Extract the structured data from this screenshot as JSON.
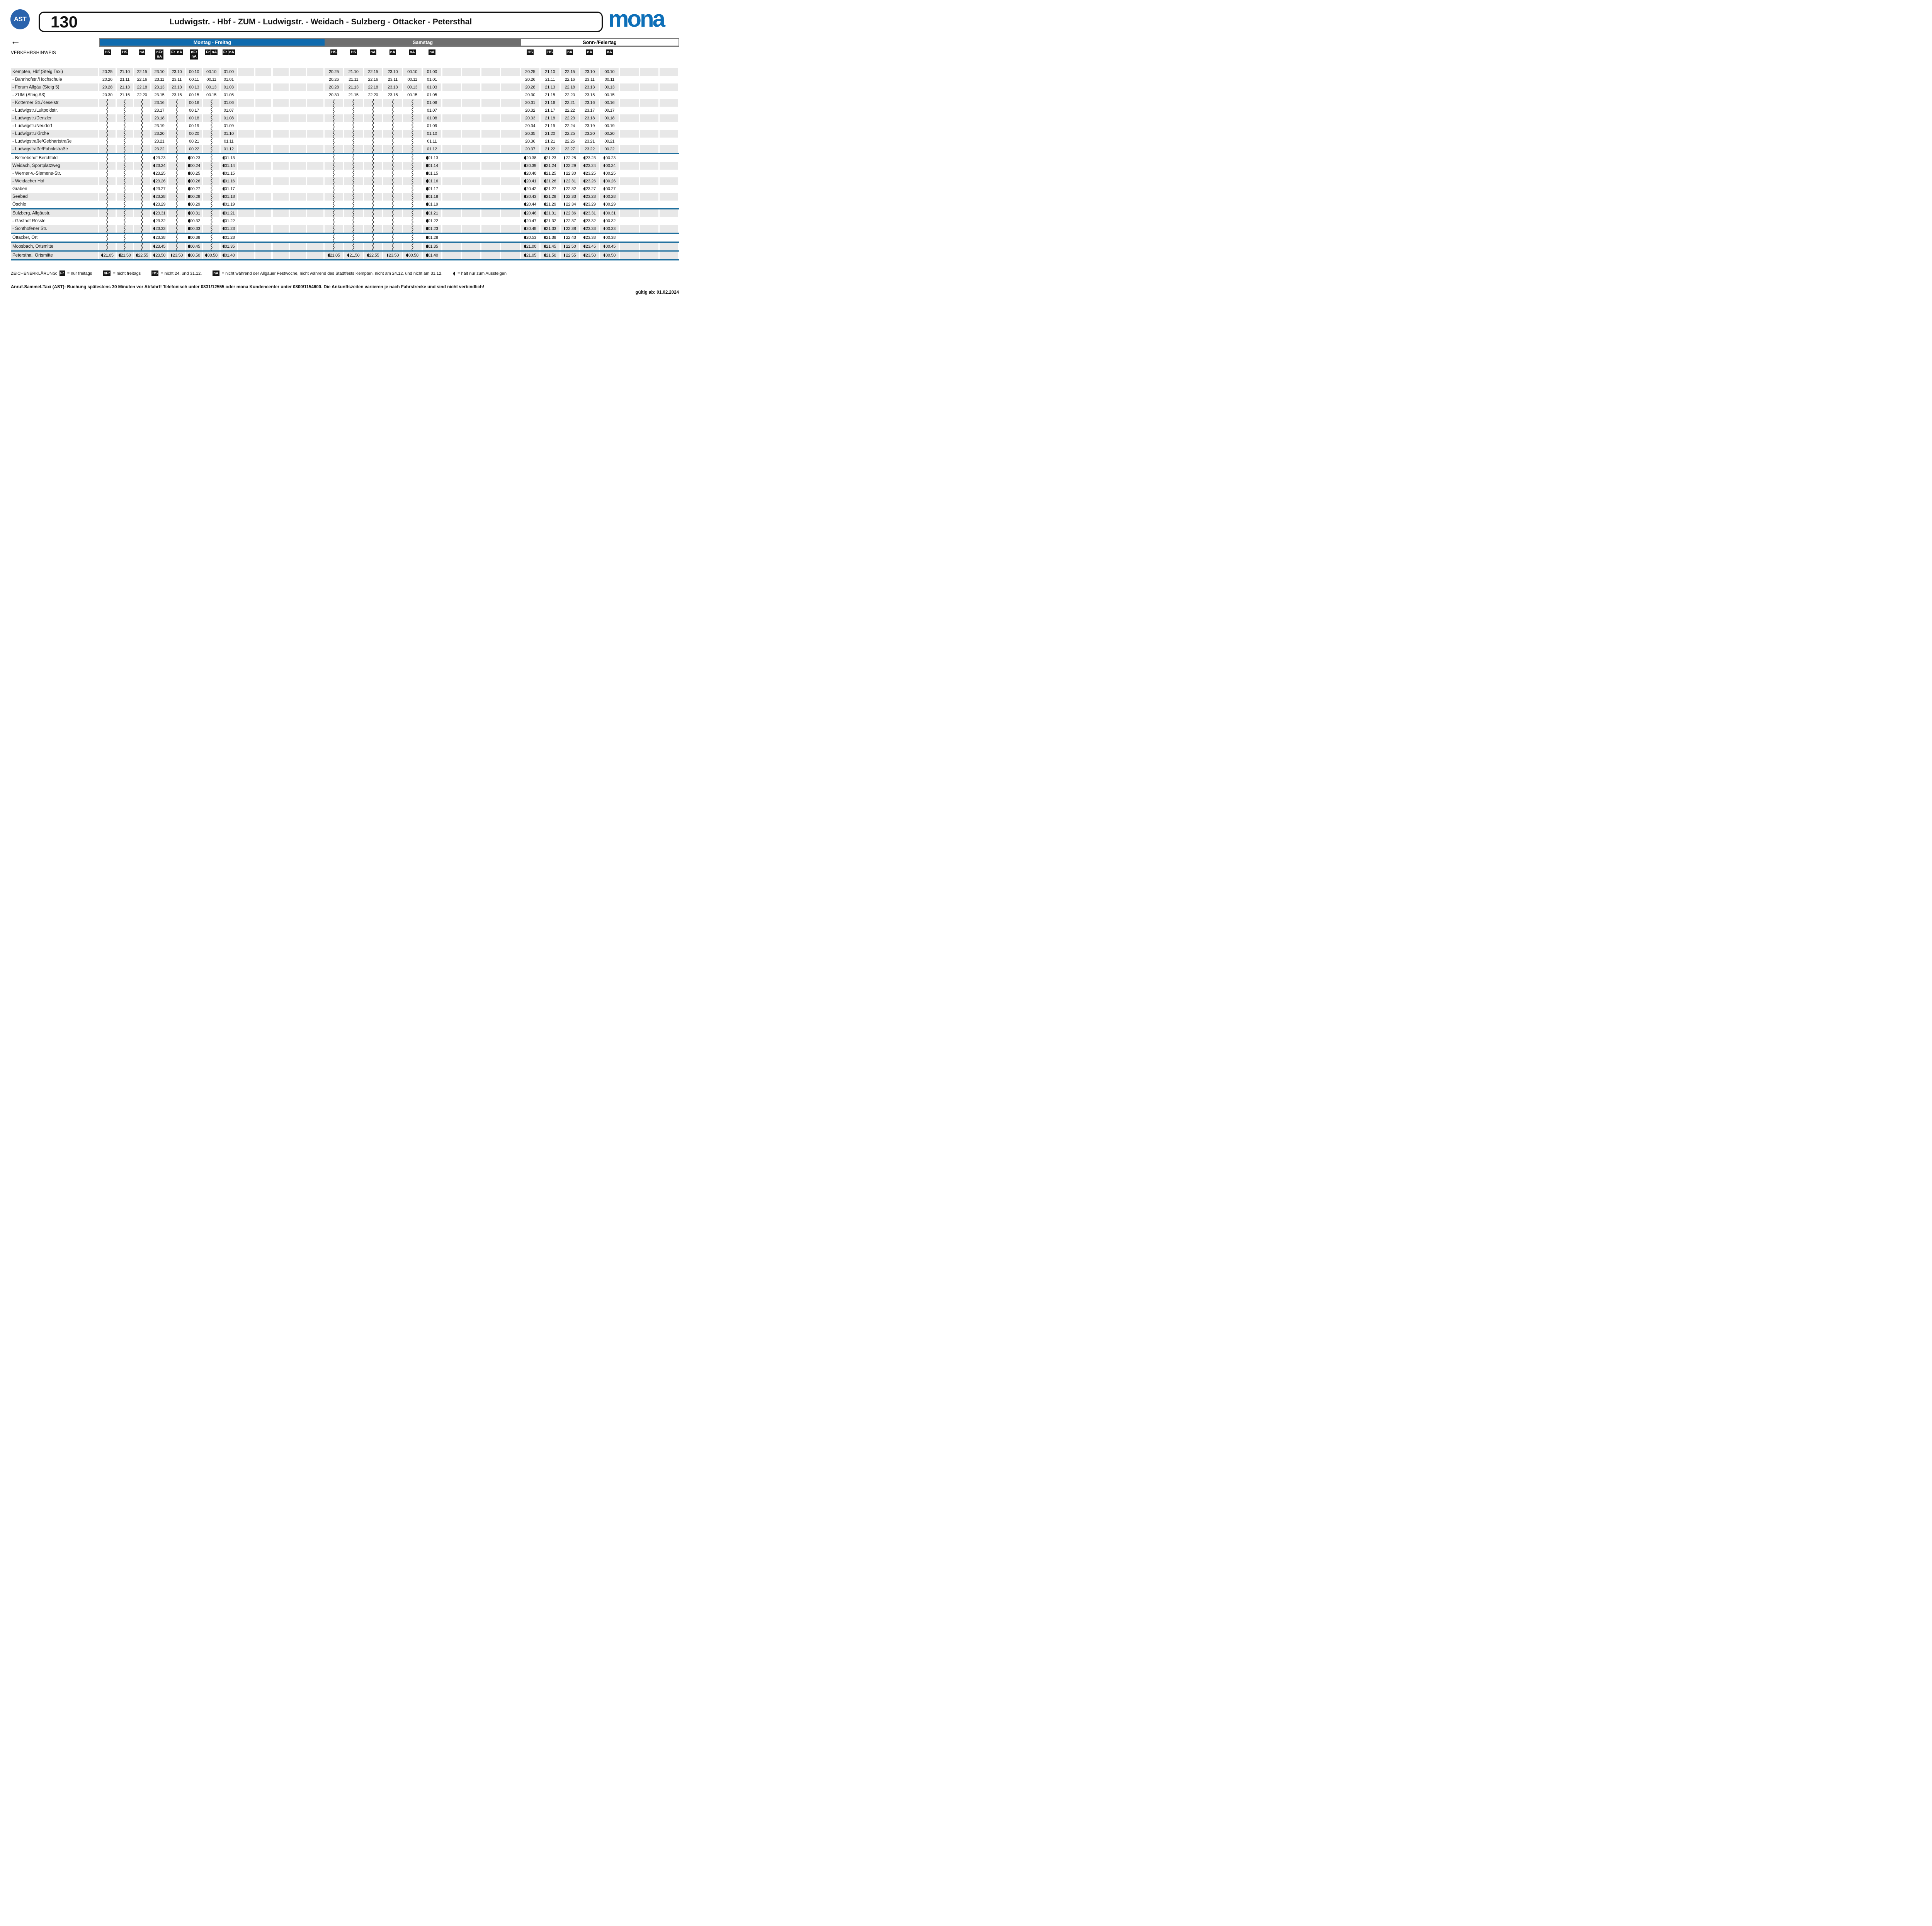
{
  "header": {
    "ast_badge": "AST",
    "route_number": "130",
    "route_title": "Ludwigstr. - Hbf - ZUM - Ludwigstr. - Weidach - Sulzberg - Ottacker - Petersthal",
    "brand": "mona",
    "back_arrow": "←",
    "hint_label": "VERKEHRSHINWEIS"
  },
  "colors": {
    "weekday_band": "#0f6bae",
    "saturday_band": "#6f6f6f",
    "sunday_band": "#ffffff",
    "row_shade": "#e8e8e8",
    "separator_blue": "#1e6f9e",
    "brand_blue": "#0d6fb8",
    "ast_blue": "#2a63ad"
  },
  "day_blocks": [
    {
      "id": "mf",
      "label": "Montag - Freitag",
      "cols": 13,
      "tags": [
        "HS",
        "HS",
        "nA",
        "nFr+nA",
        "Fr nA",
        "nFr+nA",
        "Fr nA",
        "Fr nA"
      ]
    },
    {
      "id": "sa",
      "label": "Samstag",
      "cols": 10,
      "tags": [
        "HS",
        "HS",
        "nA",
        "nA",
        "nA",
        "nA"
      ]
    },
    {
      "id": "so",
      "label": "Sonn-/Feiertag",
      "cols": 8,
      "tags": [
        "HS",
        "HS",
        "nA",
        "nA",
        "nA"
      ]
    }
  ],
  "timetable": {
    "separators_after": [
      10,
      17,
      20,
      21,
      22,
      23
    ],
    "stops": [
      {
        "name": "Kempten, Hbf (Steig Taxi)",
        "mf": [
          "20.25",
          "21.10",
          "22.15",
          "23.10",
          "23.10",
          "00.10",
          "00.10",
          "01.00"
        ],
        "sa": [
          "20.25",
          "21.10",
          "22.15",
          "23.10",
          "00.10",
          "01.00"
        ],
        "so": [
          "20.25",
          "21.10",
          "22.15",
          "23.10",
          "00.10"
        ]
      },
      {
        "name": "- Bahnhofstr./Hochschule",
        "mf": [
          "20.26",
          "21.11",
          "22.16",
          "23.11",
          "23.11",
          "00.11",
          "00.11",
          "01.01"
        ],
        "sa": [
          "20.26",
          "21.11",
          "22.16",
          "23.11",
          "00.11",
          "01.01"
        ],
        "so": [
          "20.26",
          "21.11",
          "22.16",
          "23.11",
          "00.11"
        ]
      },
      {
        "name": "- Forum Allgäu (Steig 5)",
        "mf": [
          "20.28",
          "21.13",
          "22.18",
          "23.13",
          "23.13",
          "00.13",
          "00.13",
          "01.03"
        ],
        "sa": [
          "20.28",
          "21.13",
          "22.18",
          "23.13",
          "00.13",
          "01.03"
        ],
        "so": [
          "20.28",
          "21.13",
          "22.18",
          "23.13",
          "00.13"
        ]
      },
      {
        "name": "- ZUM (Steig A3)",
        "mf": [
          "20.30",
          "21.15",
          "22.20",
          "23.15",
          "23.15",
          "00.15",
          "00.15",
          "01.05"
        ],
        "sa": [
          "20.30",
          "21.15",
          "22.20",
          "23.15",
          "00.15",
          "01.05"
        ],
        "so": [
          "20.30",
          "21.15",
          "22.20",
          "23.15",
          "00.15"
        ]
      },
      {
        "name": "- Kotterner Str./Keselstr.",
        "mf": [
          "~",
          "~",
          "~",
          "23.16",
          "~",
          "00.16",
          "~",
          "01.06"
        ],
        "sa": [
          "~",
          "~",
          "~",
          "~",
          "~",
          "01.06"
        ],
        "so": [
          "20.31",
          "21.16",
          "22.21",
          "23.16",
          "00.16"
        ]
      },
      {
        "name": "- Ludwigstr./Luitpoldstr.",
        "mf": [
          "~",
          "~",
          "~",
          "23.17",
          "~",
          "00.17",
          "~",
          "01.07"
        ],
        "sa": [
          "~",
          "~",
          "~",
          "~",
          "~",
          "01.07"
        ],
        "so": [
          "20.32",
          "21.17",
          "22.22",
          "23.17",
          "00.17"
        ]
      },
      {
        "name": "- Ludwigstr./Denzler",
        "mf": [
          "~",
          "~",
          "~",
          "23.18",
          "~",
          "00.18",
          "~",
          "01.08"
        ],
        "sa": [
          "~",
          "~",
          "~",
          "~",
          "~",
          "01.08"
        ],
        "so": [
          "20.33",
          "21.18",
          "22.23",
          "23.18",
          "00.18"
        ]
      },
      {
        "name": "- Ludwigstr./Neudorf",
        "mf": [
          "~",
          "~",
          "~",
          "23.19",
          "~",
          "00.19",
          "~",
          "01.09"
        ],
        "sa": [
          "~",
          "~",
          "~",
          "~",
          "~",
          "01.09"
        ],
        "so": [
          "20.34",
          "21.19",
          "22.24",
          "23.19",
          "00.19"
        ]
      },
      {
        "name": "- Ludwigstr./Kirche",
        "mf": [
          "~",
          "~",
          "~",
          "23.20",
          "~",
          "00.20",
          "~",
          "01.10"
        ],
        "sa": [
          "~",
          "~",
          "~",
          "~",
          "~",
          "01.10"
        ],
        "so": [
          "20.35",
          "21.20",
          "22.25",
          "23.20",
          "00.20"
        ]
      },
      {
        "name": "- Ludwigstraße/Gebhartstraße",
        "mf": [
          "~",
          "~",
          "~",
          "23.21",
          "~",
          "00.21",
          "~",
          "01.11"
        ],
        "sa": [
          "~",
          "~",
          "~",
          "~",
          "~",
          "01.11"
        ],
        "so": [
          "20.36",
          "21.21",
          "22.26",
          "23.21",
          "00.21"
        ]
      },
      {
        "name": "- Ludwigstraße/Fabrikstraße",
        "mf": [
          "~",
          "~",
          "~",
          "23.22",
          "~",
          "00.22",
          "~",
          "01.12"
        ],
        "sa": [
          "~",
          "~",
          "~",
          "~",
          "~",
          "01.12"
        ],
        "so": [
          "20.37",
          "21.22",
          "22.27",
          "23.22",
          "00.22"
        ]
      },
      {
        "name": "- Betriebshof Berchtold",
        "mf": [
          "~",
          "~",
          "~",
          "*23.23",
          "~",
          "*00.23",
          "~",
          "*01.13"
        ],
        "sa": [
          "~",
          "~",
          "~",
          "~",
          "~",
          "*01.13"
        ],
        "so": [
          "*20.38",
          "*21.23",
          "*22.28",
          "*23.23",
          "*00.23"
        ]
      },
      {
        "name": "Weidach, Sportplatzweg",
        "mf": [
          "~",
          "~",
          "~",
          "*23.24",
          "~",
          "*00.24",
          "~",
          "*01.14"
        ],
        "sa": [
          "~",
          "~",
          "~",
          "~",
          "~",
          "*01.14"
        ],
        "so": [
          "*20.39",
          "*21.24",
          "*22.29",
          "*23.24",
          "*00.24"
        ]
      },
      {
        "name": "- Werner-v.-Siemens-Str.",
        "mf": [
          "~",
          "~",
          "~",
          "*23.25",
          "~",
          "*00.25",
          "~",
          "*01.15"
        ],
        "sa": [
          "~",
          "~",
          "~",
          "~",
          "~",
          "*01.15"
        ],
        "so": [
          "*20.40",
          "*21.25",
          "*22.30",
          "*23.25",
          "*00.25"
        ]
      },
      {
        "name": "- Weidacher Hof",
        "mf": [
          "~",
          "~",
          "~",
          "*23.26",
          "~",
          "*00.26",
          "~",
          "*01.16"
        ],
        "sa": [
          "~",
          "~",
          "~",
          "~",
          "~",
          "*01.16"
        ],
        "so": [
          "*20.41",
          "*21.26",
          "*22.31",
          "*23.26",
          "*00.26"
        ]
      },
      {
        "name": "Graben",
        "mf": [
          "~",
          "~",
          "~",
          "*23.27",
          "~",
          "*00.27",
          "~",
          "*01.17"
        ],
        "sa": [
          "~",
          "~",
          "~",
          "~",
          "~",
          "*01.17"
        ],
        "so": [
          "*20.42",
          "*21.27",
          "*22.32",
          "*23.27",
          "*00.27"
        ]
      },
      {
        "name": "Seebad",
        "mf": [
          "~",
          "~",
          "~",
          "*23.28",
          "~",
          "*00.28",
          "~",
          "*01.18"
        ],
        "sa": [
          "~",
          "~",
          "~",
          "~",
          "~",
          "*01.18"
        ],
        "so": [
          "*20.43",
          "*21.28",
          "*22.33",
          "*23.28",
          "*00.28"
        ]
      },
      {
        "name": "Öschle",
        "mf": [
          "~",
          "~",
          "~",
          "*23.29",
          "~",
          "*00.29",
          "~",
          "*01.19"
        ],
        "sa": [
          "~",
          "~",
          "~",
          "~",
          "~",
          "*01.19"
        ],
        "so": [
          "*20.44",
          "*21.29",
          "*22.34",
          "*23.29",
          "*00.29"
        ]
      },
      {
        "name": "Sulzberg, Allgäustr.",
        "mf": [
          "~",
          "~",
          "~",
          "*23.31",
          "~",
          "*00.31",
          "~",
          "*01.21"
        ],
        "sa": [
          "~",
          "~",
          "~",
          "~",
          "~",
          "*01.21"
        ],
        "so": [
          "*20.46",
          "*21.31",
          "*22.36",
          "*23.31",
          "*00.31"
        ]
      },
      {
        "name": "- Gasthof Rössle",
        "mf": [
          "~",
          "~",
          "~",
          "*23.32",
          "~",
          "*00.32",
          "~",
          "*01.22"
        ],
        "sa": [
          "~",
          "~",
          "~",
          "~",
          "~",
          "*01.22"
        ],
        "so": [
          "*20.47",
          "*21.32",
          "*22.37",
          "*23.32",
          "*00.32"
        ]
      },
      {
        "name": "- Sonthofener Str.",
        "mf": [
          "~",
          "~",
          "~",
          "*23.33",
          "~",
          "*00.33",
          "~",
          "*01.23"
        ],
        "sa": [
          "~",
          "~",
          "~",
          "~",
          "~",
          "*01.23"
        ],
        "so": [
          "*20.48",
          "*21.33",
          "*22.38",
          "*23.33",
          "*00.33"
        ]
      },
      {
        "name": "Ottacker, Ort",
        "mf": [
          "~",
          "~",
          "~",
          "*23.38",
          "~",
          "*00.38",
          "~",
          "*01.28"
        ],
        "sa": [
          "~",
          "~",
          "~",
          "~",
          "~",
          "*01.28"
        ],
        "so": [
          "*20.53",
          "*21.38",
          "*22.43",
          "*23.38",
          "*00.38"
        ]
      },
      {
        "name": "Moosbach, Ortsmitte",
        "mf": [
          "~",
          "~",
          "~",
          "*23.45",
          "~",
          "*00.45",
          "~",
          "*01.35"
        ],
        "sa": [
          "~",
          "~",
          "~",
          "~",
          "~",
          "*01.35"
        ],
        "so": [
          "*21.00",
          "*21.45",
          "*22.50",
          "*23.45",
          "*00.45"
        ]
      },
      {
        "name": "Petersthal, Ortsmitte",
        "mf": [
          "*21.05",
          "*21.50",
          "*22.55",
          "*23.50",
          "*23.50",
          "*00.50",
          "*00.50",
          "*01.40"
        ],
        "sa": [
          "*21.05",
          "*21.50",
          "*22.55",
          "*23.50",
          "*00.50",
          "*01.40"
        ],
        "so": [
          "*21.05",
          "*21.50",
          "*22.55",
          "*23.50",
          "*00.50"
        ]
      }
    ]
  },
  "legend": {
    "title": "ZEICHENERKLÄRUNG:",
    "items": [
      {
        "badge": "Fr",
        "text": "= nur freitags"
      },
      {
        "badge": "nFr",
        "text": "= nicht freitags"
      },
      {
        "badge": "HS",
        "text": "= nicht 24. und 31.12."
      },
      {
        "badge": "nA",
        "text": "= nicht während der Allgäuer Festwoche, nicht während des Stadtfests Kempten, nicht am 24.12. und nicht am 31.12."
      },
      {
        "badge": "◖",
        "text": "= hält nur zum Aussteigen"
      }
    ]
  },
  "footer": {
    "note": "Anruf-Sammel-Taxi (AST): Buchung spätestens 30 Minuten vor Abfahrt! Telefonisch unter 0831/12555 oder mona Kundencenter unter 0800/1154600. Die Ankunftszeiten variieren je nach Fahrstrecke und sind nicht verbindlich!",
    "valid_from": "gültig ab: 01.02.2024"
  }
}
